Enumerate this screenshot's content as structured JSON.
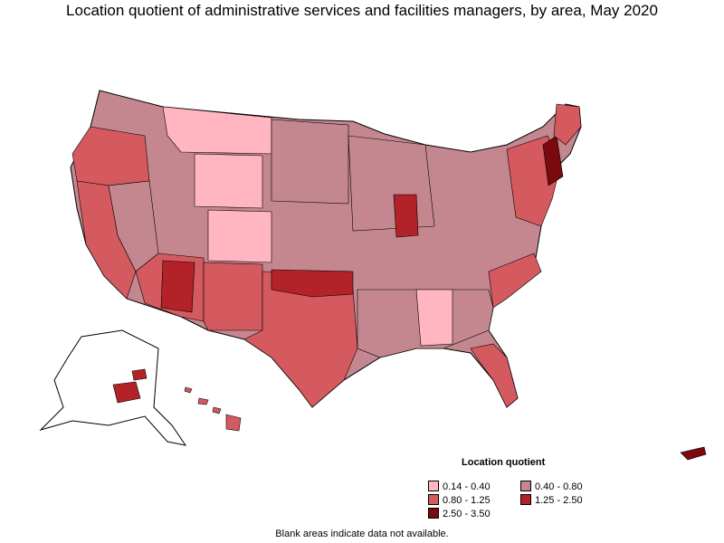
{
  "title": "Location quotient of administrative services and facilities managers, by area, May 2020",
  "legend": {
    "title": "Location quotient",
    "items": [
      {
        "label": "0.14 - 0.40",
        "color": "#ffb6c1"
      },
      {
        "label": "0.40 - 0.80",
        "color": "#c4878f"
      },
      {
        "label": "0.80 - 1.25",
        "color": "#d45a60"
      },
      {
        "label": "1.25 - 2.50",
        "color": "#b22228"
      },
      {
        "label": "2.50 - 3.50",
        "color": "#7a0a0e"
      }
    ]
  },
  "note": "Blank areas indicate data not available.",
  "colors": {
    "border": "#000000",
    "blank": "#ffffff"
  }
}
